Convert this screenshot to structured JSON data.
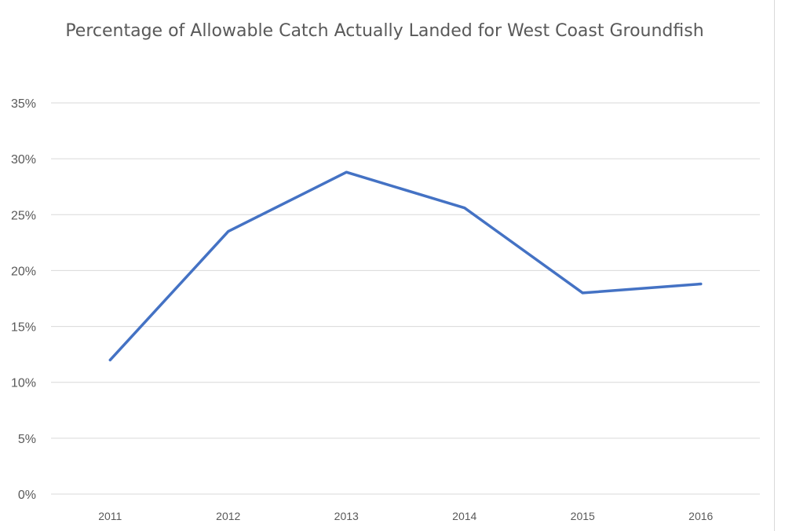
{
  "chart_data": {
    "type": "line",
    "title": "Percentage of Allowable Catch Actually Landed for West Coast Groundfish",
    "xlabel": "",
    "ylabel": "",
    "categories": [
      "2011",
      "2012",
      "2013",
      "2014",
      "2015",
      "2016"
    ],
    "series": [
      {
        "values": [
          12.0,
          23.5,
          28.8,
          25.6,
          18.0,
          18.8
        ]
      }
    ],
    "ylim": [
      0,
      35
    ],
    "yticks": [
      "0%",
      "5%",
      "10%",
      "15%",
      "20%",
      "25%",
      "30%",
      "35%"
    ],
    "grid": true,
    "legend": "none",
    "colors": {
      "line": "#4472C4",
      "grid": "#d9d9d9",
      "text": "#595959"
    }
  }
}
